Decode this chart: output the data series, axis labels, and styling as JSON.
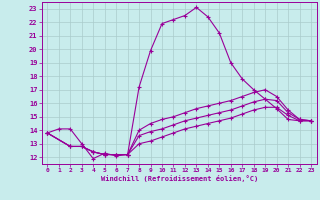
{
  "xlabel": "Windchill (Refroidissement éolien,°C)",
  "bg_color": "#c8ecec",
  "line_color": "#990099",
  "grid_color": "#aacccc",
  "xlim": [
    -0.5,
    23.5
  ],
  "ylim": [
    11.5,
    23.5
  ],
  "xticks": [
    0,
    1,
    2,
    3,
    4,
    5,
    6,
    7,
    8,
    9,
    10,
    11,
    12,
    13,
    14,
    15,
    16,
    17,
    18,
    19,
    20,
    21,
    22,
    23
  ],
  "yticks": [
    12,
    13,
    14,
    15,
    16,
    17,
    18,
    19,
    20,
    21,
    22,
    23
  ],
  "lines": [
    {
      "x": [
        0,
        1,
        2,
        3,
        4,
        5,
        6,
        7,
        8,
        9,
        10,
        11,
        12,
        13,
        14,
        15,
        16,
        17,
        18,
        19,
        20,
        21,
        22,
        23
      ],
      "y": [
        13.8,
        14.1,
        14.1,
        13.0,
        11.9,
        12.3,
        12.1,
        12.2,
        17.2,
        19.9,
        21.9,
        22.2,
        22.5,
        23.1,
        22.4,
        21.2,
        19.0,
        17.8,
        17.0,
        16.3,
        15.6,
        14.8,
        14.7,
        14.7
      ]
    },
    {
      "x": [
        0,
        2,
        3,
        4,
        5,
        6,
        7,
        8,
        9,
        10,
        11,
        12,
        13,
        14,
        15,
        16,
        17,
        18,
        19,
        20,
        21,
        22,
        23
      ],
      "y": [
        13.8,
        12.8,
        12.8,
        12.4,
        12.2,
        12.2,
        12.2,
        14.0,
        14.5,
        14.8,
        15.0,
        15.3,
        15.6,
        15.8,
        16.0,
        16.2,
        16.5,
        16.8,
        17.0,
        16.5,
        15.5,
        14.8,
        14.7
      ]
    },
    {
      "x": [
        0,
        2,
        3,
        4,
        5,
        6,
        7,
        8,
        9,
        10,
        11,
        12,
        13,
        14,
        15,
        16,
        17,
        18,
        19,
        20,
        21,
        22,
        23
      ],
      "y": [
        13.8,
        12.8,
        12.8,
        12.4,
        12.2,
        12.2,
        12.2,
        13.6,
        13.9,
        14.1,
        14.4,
        14.7,
        14.9,
        15.1,
        15.3,
        15.5,
        15.8,
        16.1,
        16.3,
        16.2,
        15.3,
        14.8,
        14.7
      ]
    },
    {
      "x": [
        0,
        2,
        3,
        4,
        5,
        6,
        7,
        8,
        9,
        10,
        11,
        12,
        13,
        14,
        15,
        16,
        17,
        18,
        19,
        20,
        21,
        22,
        23
      ],
      "y": [
        13.8,
        12.8,
        12.8,
        12.4,
        12.2,
        12.2,
        12.2,
        13.0,
        13.2,
        13.5,
        13.8,
        14.1,
        14.3,
        14.5,
        14.7,
        14.9,
        15.2,
        15.5,
        15.7,
        15.7,
        15.1,
        14.7,
        14.7
      ]
    }
  ]
}
